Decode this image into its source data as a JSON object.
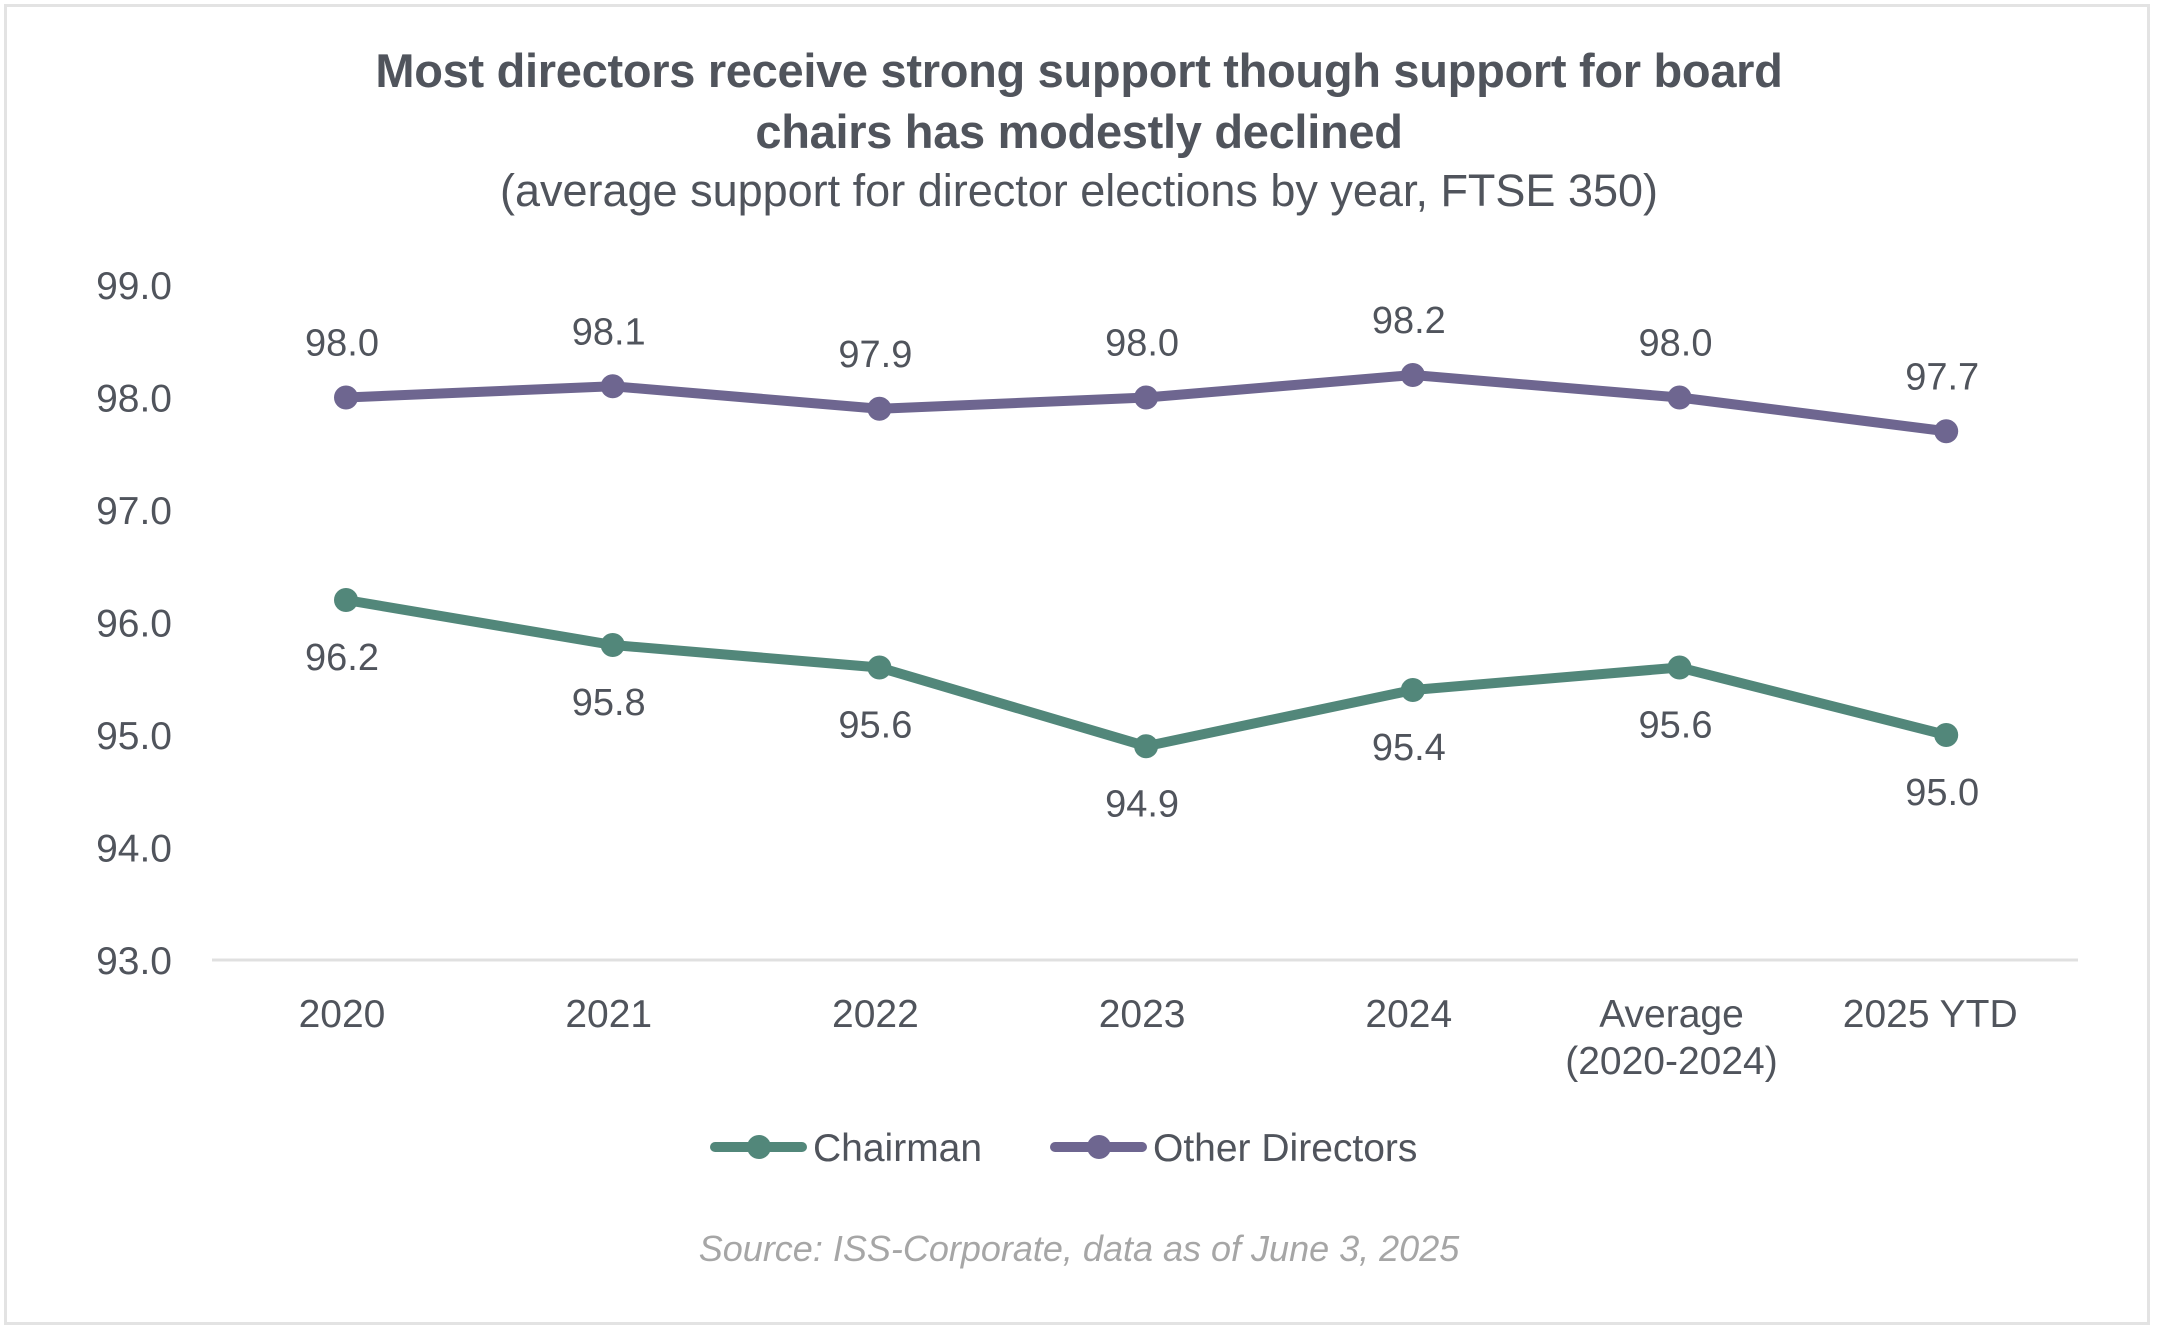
{
  "title": "Most directors receive strong support though support for board chairs has modestly declined",
  "title_lines": [
    "Most directors receive strong support though support for board",
    "chairs has modestly declined"
  ],
  "subtitle": "(average support for director elections by year, FTSE 350)",
  "source": "Source: ISS-Corporate, data as of June 3, 2025",
  "colors": {
    "chairman": "#52877a",
    "other_directors": "#6e6690",
    "text": "#50545c",
    "axis": "#e0e0e0",
    "source": "#a6a6a6"
  },
  "chart_data": {
    "type": "line",
    "title": "Most directors receive strong support though support for board chairs has modestly declined",
    "subtitle": "(average support for director elections by year, FTSE 350)",
    "xlabel": "",
    "ylabel": "",
    "categories": [
      "2020",
      "2021",
      "2022",
      "2023",
      "2024",
      "Average (2020-2024)",
      "2025 YTD"
    ],
    "category_lines": [
      [
        "2020"
      ],
      [
        "2021"
      ],
      [
        "2022"
      ],
      [
        "2023"
      ],
      [
        "2024"
      ],
      [
        "Average",
        "(2020-2024)"
      ],
      [
        "2025 YTD"
      ]
    ],
    "ylim": [
      93.0,
      99.0
    ],
    "yticks": [
      "93.0",
      "94.0",
      "95.0",
      "96.0",
      "97.0",
      "98.0",
      "99.0"
    ],
    "grid": false,
    "legend_position": "bottom",
    "series": [
      {
        "name": "Chairman",
        "color": "#52877a",
        "values": [
          96.2,
          95.8,
          95.6,
          94.9,
          95.4,
          95.6,
          95.0
        ],
        "labels": [
          "96.2",
          "95.8",
          "95.6",
          "94.9",
          "95.4",
          "95.6",
          "95.0"
        ],
        "label_position": "below"
      },
      {
        "name": "Other Directors",
        "color": "#6e6690",
        "values": [
          98.0,
          98.1,
          97.9,
          98.0,
          98.2,
          98.0,
          97.7
        ],
        "labels": [
          "98.0",
          "98.1",
          "97.9",
          "98.0",
          "98.2",
          "98.0",
          "97.7"
        ],
        "label_position": "above"
      }
    ]
  }
}
